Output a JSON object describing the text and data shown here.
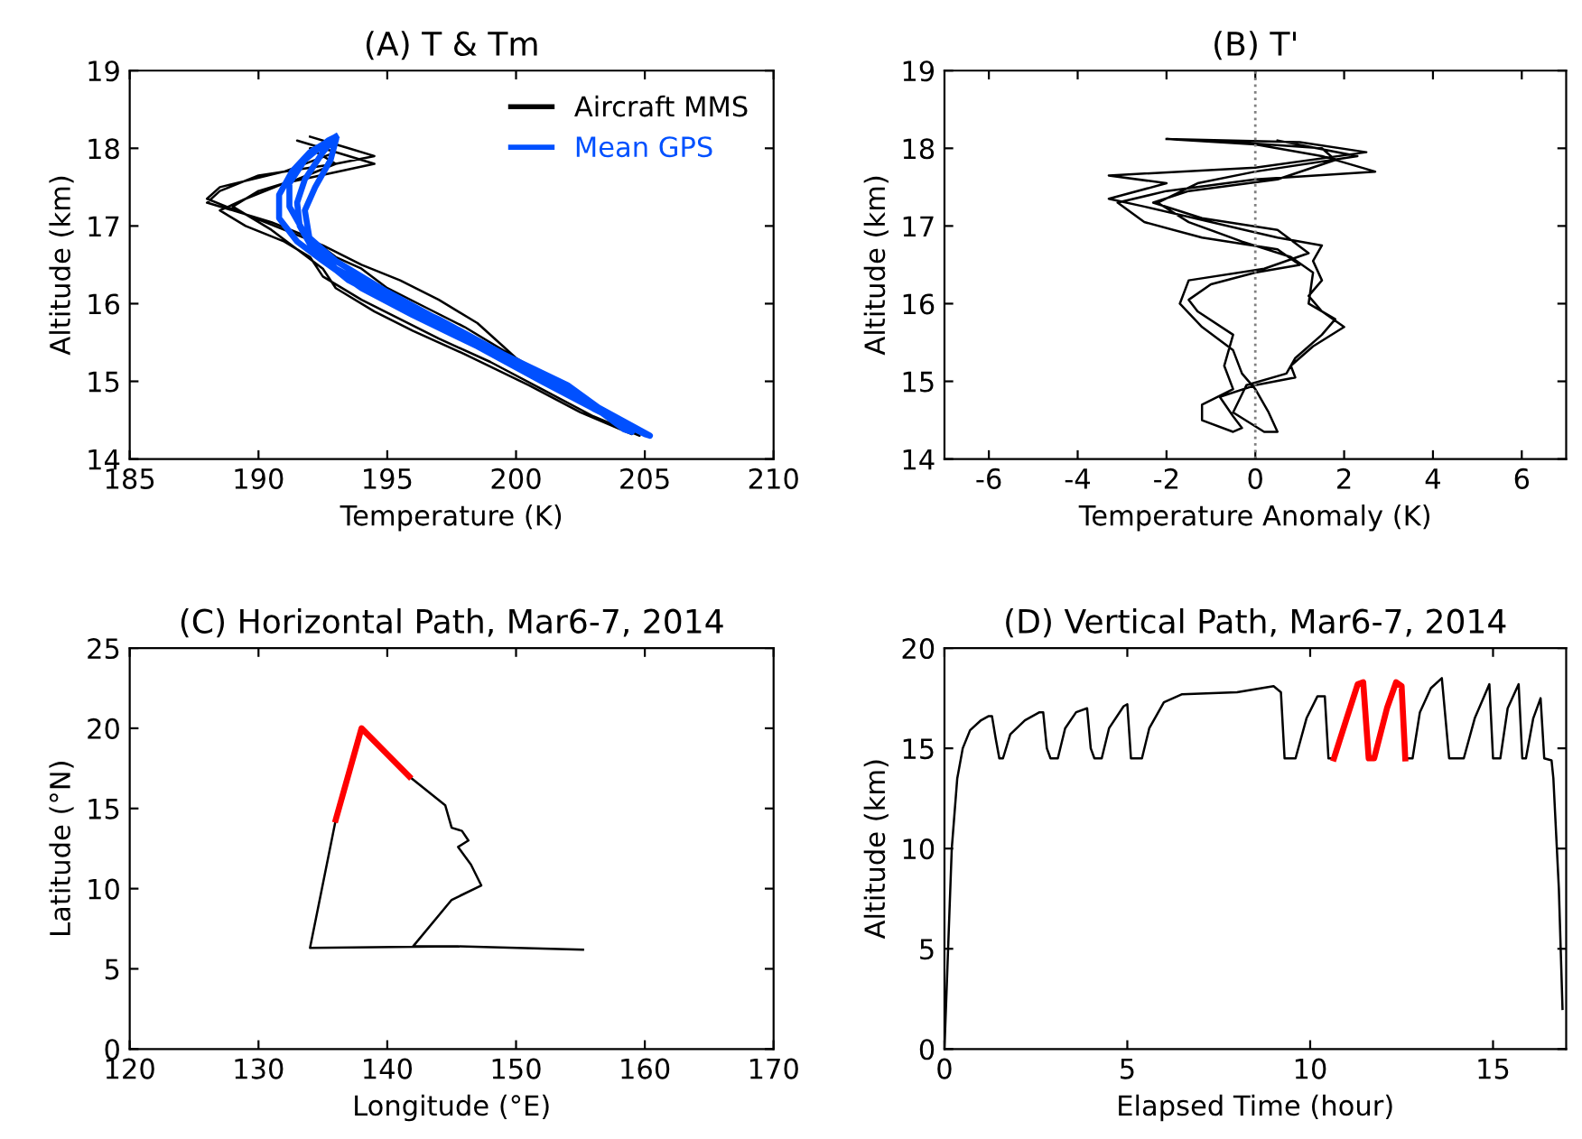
{
  "chart_data": [
    {
      "type": "line",
      "title": "(A) T & Tm",
      "xlabel": "Temperature (K)",
      "ylabel": "Altitude (km)",
      "xlim": [
        185,
        210
      ],
      "xticks": [
        185,
        190,
        195,
        200,
        205,
        210
      ],
      "ylim": [
        14,
        19
      ],
      "yticks": [
        14,
        15,
        16,
        17,
        18,
        19
      ],
      "legend": "top right",
      "grid": false,
      "series": [
        {
          "name": "Aircraft MMS",
          "color": "#000000",
          "x": [
            192.0,
            193.5,
            194.5,
            193,
            190,
            188.5,
            188,
            189,
            190.5,
            192,
            193,
            194,
            195,
            196.5,
            198,
            199.5,
            201.5,
            203,
            204.5,
            204.8,
            203,
            201,
            199,
            197,
            195.5,
            194,
            192.5,
            192,
            191,
            189.5,
            188.5,
            189.5,
            191,
            194.5,
            192,
            191.5,
            193,
            191,
            188.5,
            188,
            189.5,
            191,
            192.5,
            194,
            195.5,
            197,
            198.5,
            199.5,
            200.5,
            202,
            204.2,
            204.5,
            202.5,
            200.5,
            198,
            196,
            194.5,
            193,
            192.5,
            191.5,
            190.5,
            189,
            190,
            191.5,
            193,
            192,
            193
          ],
          "values": [
            18.15,
            18.0,
            17.9,
            17.8,
            17.65,
            17.45,
            17.3,
            17.2,
            17.05,
            16.85,
            16.6,
            16.45,
            16.2,
            15.95,
            15.7,
            15.4,
            15.0,
            14.65,
            14.35,
            14.3,
            14.55,
            14.9,
            15.25,
            15.55,
            15.8,
            16.05,
            16.35,
            16.6,
            16.8,
            17.0,
            17.2,
            17.35,
            17.55,
            17.8,
            18.05,
            18.1,
            17.95,
            17.7,
            17.5,
            17.35,
            17.15,
            16.95,
            16.75,
            16.5,
            16.3,
            16.05,
            15.75,
            15.45,
            15.15,
            14.85,
            14.4,
            14.32,
            14.6,
            14.95,
            15.35,
            15.65,
            15.9,
            16.2,
            16.45,
            16.7,
            16.95,
            17.25,
            17.45,
            17.6,
            17.8,
            18.0,
            18.1
          ]
        },
        {
          "name": "Mean GPS",
          "color": "#0050ff",
          "x": [
            193,
            192,
            191.3,
            190.8,
            190.8,
            191.5,
            192.5,
            194,
            196,
            198.5,
            201,
            203,
            205,
            205.2,
            203,
            200.5,
            198,
            195.5,
            193.5,
            192.2,
            191.6,
            191.5,
            191.8,
            192.5,
            193,
            192.7,
            191.8,
            191.2,
            191.2,
            191.8,
            193,
            195,
            197.5,
            200,
            202.5,
            204.2,
            204.5,
            202,
            199.5,
            197,
            195,
            193,
            192,
            191.8,
            192.2,
            192.8,
            193
          ],
          "values": [
            18.15,
            17.95,
            17.7,
            17.4,
            17.1,
            16.8,
            16.55,
            16.2,
            15.85,
            15.45,
            15.0,
            14.65,
            14.32,
            14.3,
            14.7,
            15.15,
            15.55,
            15.95,
            16.3,
            16.65,
            17.0,
            17.3,
            17.6,
            17.95,
            18.15,
            18.1,
            17.85,
            17.55,
            17.25,
            16.9,
            16.55,
            16.15,
            15.7,
            15.25,
            14.8,
            14.38,
            14.35,
            14.95,
            15.35,
            15.8,
            16.1,
            16.45,
            16.8,
            17.2,
            17.5,
            17.85,
            18.1
          ]
        }
      ]
    },
    {
      "type": "line",
      "title": "(B) T'",
      "xlabel": "Temperature Anomaly (K)",
      "ylabel": "Altitude (km)",
      "xlim": [
        -7,
        7
      ],
      "xticks": [
        -6,
        -4,
        -2,
        0,
        2,
        4,
        6
      ],
      "ylim": [
        14,
        19
      ],
      "yticks": [
        14,
        15,
        16,
        17,
        18,
        19
      ],
      "grid": false,
      "ref_lines": [
        {
          "axis": "x",
          "value": 0,
          "color": "#808080",
          "line_style": "dotted"
        }
      ],
      "series": [
        {
          "color": "#000000",
          "x": [
            -2,
            1,
            2.5,
            0,
            -3.3,
            -2,
            -3.3,
            -2.5,
            -1,
            0.5,
            1.5,
            1.3,
            1.5,
            1.2,
            1.5,
            2,
            1.3,
            0.8,
            0.9,
            0,
            -0.8,
            -0.5,
            -0.3,
            -0.5,
            -1.2,
            -1.2,
            -0.5,
            -0.7,
            -0.5,
            -1.3,
            -1.5,
            -1,
            0,
            1,
            0.5,
            -1.2,
            -2.5,
            -3.1,
            -2,
            0,
            2.7,
            1.5,
            0,
            -2,
            -1,
            1.5,
            1.8,
            0.5,
            -1.5,
            -2.3,
            -1.2,
            0.5,
            1.2,
            0.2,
            -1.5,
            -1.7,
            -1.2,
            -0.5,
            -0.3,
            0,
            0.3,
            0.5,
            0.2,
            -0.5,
            -0.2,
            0.7,
            0.9,
            1.5,
            1.8,
            1.2,
            1.3,
            0.8,
            -0.3,
            -1.5,
            -2.2,
            -1.3,
            0,
            2.3,
            0.5
          ],
          "values": [
            18.12,
            18.08,
            17.95,
            17.75,
            17.65,
            17.55,
            17.35,
            17.25,
            17.05,
            16.85,
            16.75,
            16.55,
            16.3,
            16.1,
            15.9,
            15.7,
            15.45,
            15.2,
            15.05,
            14.95,
            14.8,
            14.55,
            14.4,
            14.35,
            14.5,
            14.7,
            14.9,
            15.2,
            15.6,
            15.9,
            16.05,
            16.25,
            16.4,
            16.5,
            16.7,
            16.85,
            17.05,
            17.3,
            17.45,
            17.6,
            17.7,
            17.9,
            18.05,
            18.12,
            18.1,
            18.0,
            17.85,
            17.6,
            17.45,
            17.3,
            17.1,
            16.95,
            16.65,
            16.45,
            16.3,
            16.0,
            15.7,
            15.4,
            15.1,
            14.9,
            14.6,
            14.35,
            14.35,
            14.6,
            14.95,
            15.1,
            15.3,
            15.6,
            15.8,
            16.0,
            16.4,
            16.6,
            16.8,
            17.05,
            17.3,
            17.55,
            17.7,
            17.9,
            18.1
          ]
        }
      ]
    },
    {
      "type": "line",
      "title": "(C) Horizontal Path, Mar6-7, 2014",
      "xlabel": "Longitude (°E)",
      "ylabel": "Latitude (°N)",
      "xlim": [
        120,
        170
      ],
      "xticks": [
        120,
        130,
        140,
        150,
        160,
        170
      ],
      "ylim": [
        0,
        25
      ],
      "yticks": [
        0,
        5,
        10,
        15,
        20,
        25
      ],
      "grid": false,
      "series": [
        {
          "color": "#000000",
          "x": [
            155.2,
            145.5,
            134,
            136,
            null,
            141.7,
            144.5,
            145,
            145.8,
            146.3,
            145.5,
            146.5,
            147.3,
            145,
            142,
            145.5,
            155.2
          ],
          "values": [
            6.2,
            6.4,
            6.3,
            14.3,
            null,
            17,
            15.2,
            13.8,
            13.6,
            13.0,
            12.6,
            11.5,
            10.2,
            9.3,
            6.4,
            6.4,
            6.2
          ]
        },
        {
          "color": "#ff0000",
          "x": [
            136,
            138,
            141.7
          ],
          "values": [
            14.3,
            20,
            17
          ]
        }
      ]
    },
    {
      "type": "line",
      "title": "(D) Vertical Path, Mar6-7, 2014",
      "xlabel": "Elapsed Time (hour)",
      "ylabel": "Altitude (km)",
      "xlim": [
        0,
        17
      ],
      "xticks": [
        0,
        5,
        10,
        15
      ],
      "ylim": [
        0,
        20
      ],
      "yticks": [
        0,
        5,
        10,
        15,
        20
      ],
      "grid": false,
      "series": [
        {
          "color": "#000000",
          "x": [
            0,
            0.1,
            0.2,
            0.35,
            0.5,
            0.7,
            1.0,
            1.2,
            1.3,
            1.4,
            1.5,
            1.6,
            1.8,
            2.2,
            2.6,
            2.7,
            2.8,
            2.9,
            3.1,
            3.3,
            3.6,
            3.9,
            4.0,
            4.1,
            4.3,
            4.5,
            4.9,
            5.0,
            5.1,
            5.4,
            5.6,
            6.0,
            6.5,
            8.0,
            9.0,
            9.2,
            9.3,
            9.6,
            9.9,
            10.2,
            10.4,
            10.5,
            10.65,
            null,
            12.6,
            12.8,
            13.0,
            13.3,
            13.6,
            13.8,
            14.2,
            14.5,
            14.9,
            15.0,
            15.2,
            15.4,
            15.7,
            15.8,
            15.9,
            16.1,
            16.3,
            16.4,
            16.6,
            16.65,
            16.8,
            16.9
          ],
          "values": [
            0,
            5,
            10,
            13.5,
            15,
            15.9,
            16.4,
            16.6,
            16.6,
            15.5,
            14.5,
            14.5,
            15.7,
            16.4,
            16.8,
            16.8,
            15,
            14.5,
            14.5,
            16,
            16.8,
            17.0,
            15,
            14.5,
            14.5,
            16,
            17.1,
            17.2,
            14.5,
            14.5,
            16,
            17.3,
            17.7,
            17.8,
            18.1,
            17.8,
            14.5,
            14.5,
            16.5,
            17.6,
            17.6,
            14.5,
            14.5,
            null,
            14.5,
            14.5,
            16.8,
            18.0,
            18.5,
            14.5,
            14.5,
            16.5,
            18.2,
            14.5,
            14.5,
            17,
            18.2,
            14.5,
            14.5,
            16.5,
            17.5,
            14.5,
            14.4,
            13.5,
            8,
            2
          ]
        },
        {
          "color": "#ff0000",
          "x": [
            10.65,
            11,
            11.3,
            11.45,
            11.6,
            11.75,
            12.1,
            12.35,
            12.5,
            12.6
          ],
          "values": [
            14.5,
            16.5,
            18.2,
            18.3,
            14.5,
            14.5,
            17.0,
            18.3,
            18.1,
            14.5
          ]
        }
      ]
    }
  ]
}
